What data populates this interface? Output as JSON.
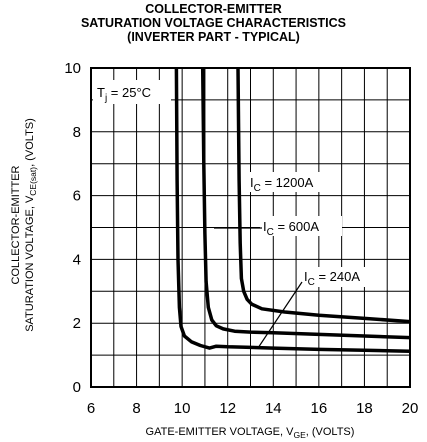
{
  "chart_data": {
    "type": "line",
    "title_lines": [
      "COLLECTOR-EMITTER",
      "SATURATION VOLTAGE CHARACTERISTICS",
      "(INVERTER PART - TYPICAL)"
    ],
    "xlabel": {
      "main": "GATE-EMITTER VOLTAGE, V",
      "sub": "GE",
      "tail": ", (VOLTS)"
    },
    "ylabel": {
      "line1": "COLLECTOR-EMITTER",
      "line2_main": "SATURATION VOLTAGE, V",
      "line2_sub": "CE(sat)",
      "line2_tail": ", (VOLTS)"
    },
    "xlim": [
      6,
      20
    ],
    "ylim": [
      0,
      10
    ],
    "x_ticks": [
      6,
      8,
      10,
      12,
      14,
      16,
      18,
      20
    ],
    "x_tick_labels": [
      "6",
      "8",
      "10",
      "12",
      "14",
      "16",
      "18",
      "20"
    ],
    "y_ticks": [
      0,
      2,
      4,
      6,
      8,
      10
    ],
    "y_tick_labels": [
      "0",
      "2",
      "4",
      "6",
      "8",
      "10"
    ],
    "grid": true,
    "condition": {
      "main": "T",
      "sub": "j",
      "tail": " = 25°C"
    },
    "series": [
      {
        "label_main": "I",
        "label_sub": "C",
        "label_tail": " = 1200A",
        "x": [
          12.45,
          12.5,
          12.55,
          12.6,
          12.7,
          12.85,
          13.05,
          13.5,
          14.5,
          16,
          18,
          20
        ],
        "y": [
          10,
          6.5,
          4.5,
          3.4,
          3.0,
          2.75,
          2.6,
          2.45,
          2.35,
          2.25,
          2.15,
          2.05
        ]
      },
      {
        "label_main": "I",
        "label_sub": "C",
        "label_tail": " = 600A",
        "x": [
          10.9,
          10.95,
          11.0,
          11.05,
          11.15,
          11.3,
          11.5,
          11.8,
          12.3,
          13,
          14,
          16,
          18,
          20
        ],
        "y": [
          10,
          7.0,
          4.8,
          3.3,
          2.5,
          2.1,
          1.92,
          1.82,
          1.75,
          1.72,
          1.7,
          1.65,
          1.6,
          1.55
        ]
      },
      {
        "label_main": "I",
        "label_sub": "C",
        "label_tail": " = 240A",
        "x": [
          9.75,
          9.78,
          9.82,
          9.88,
          9.95,
          10.1,
          10.4,
          10.8,
          11.2,
          11.5,
          12,
          13,
          14,
          16,
          18,
          20
        ],
        "y": [
          10,
          6.5,
          4.0,
          2.5,
          1.9,
          1.6,
          1.42,
          1.3,
          1.22,
          1.28,
          1.26,
          1.24,
          1.22,
          1.18,
          1.15,
          1.12
        ]
      }
    ]
  }
}
